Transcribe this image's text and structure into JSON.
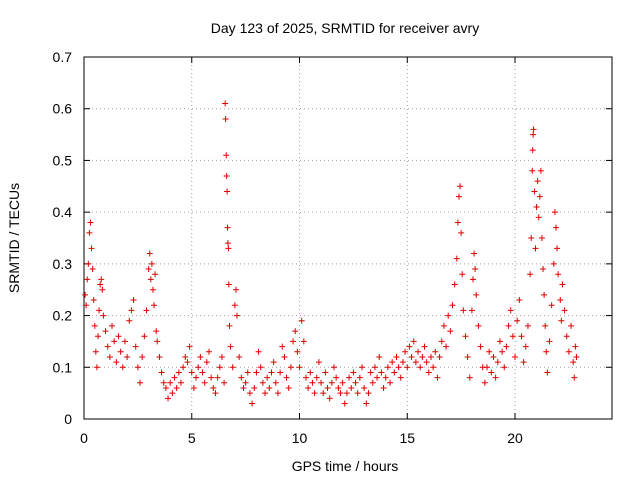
{
  "chart_data": {
    "type": "scatter",
    "title": "Day 123 of 2025, SRMTID for receiver avry",
    "xlabel": "GPS time / hours",
    "ylabel": "SRMTID / TECUs",
    "xlim": [
      0,
      24.5
    ],
    "ylim": [
      0,
      0.7
    ],
    "xticks": [
      0,
      5,
      10,
      15,
      20
    ],
    "xtick_labels": [
      "0",
      "5",
      "10",
      "15",
      "20"
    ],
    "yticks": [
      0,
      0.1,
      0.2,
      0.3,
      0.4,
      0.5,
      0.6,
      0.7
    ],
    "ytick_labels": [
      "0",
      "0.1",
      "0.2",
      "0.3",
      "0.4",
      "0.5",
      "0.6",
      "0.7"
    ],
    "grid": true,
    "marker": "plus",
    "color": "#e00000",
    "series": [
      {
        "name": "SRMTID",
        "points": [
          [
            0.05,
            0.24
          ],
          [
            0.1,
            0.22
          ],
          [
            0.15,
            0.27
          ],
          [
            0.2,
            0.3
          ],
          [
            0.25,
            0.36
          ],
          [
            0.3,
            0.38
          ],
          [
            0.35,
            0.33
          ],
          [
            0.4,
            0.29
          ],
          [
            0.45,
            0.23
          ],
          [
            0.5,
            0.18
          ],
          [
            0.55,
            0.13
          ],
          [
            0.6,
            0.1
          ],
          [
            0.65,
            0.16
          ],
          [
            0.7,
            0.21
          ],
          [
            0.75,
            0.26
          ],
          [
            0.8,
            0.27
          ],
          [
            0.85,
            0.25
          ],
          [
            0.9,
            0.2
          ],
          [
            1.0,
            0.17
          ],
          [
            1.1,
            0.14
          ],
          [
            1.2,
            0.12
          ],
          [
            1.3,
            0.18
          ],
          [
            1.4,
            0.15
          ],
          [
            1.5,
            0.11
          ],
          [
            1.6,
            0.16
          ],
          [
            1.7,
            0.13
          ],
          [
            1.8,
            0.1
          ],
          [
            1.9,
            0.15
          ],
          [
            2.0,
            0.12
          ],
          [
            2.1,
            0.19
          ],
          [
            2.2,
            0.21
          ],
          [
            2.3,
            0.23
          ],
          [
            2.4,
            0.14
          ],
          [
            2.5,
            0.1
          ],
          [
            2.6,
            0.07
          ],
          [
            2.7,
            0.12
          ],
          [
            2.8,
            0.16
          ],
          [
            2.9,
            0.21
          ],
          [
            3.0,
            0.29
          ],
          [
            3.05,
            0.32
          ],
          [
            3.1,
            0.27
          ],
          [
            3.15,
            0.3
          ],
          [
            3.2,
            0.25
          ],
          [
            3.25,
            0.22
          ],
          [
            3.3,
            0.28
          ],
          [
            3.35,
            0.17
          ],
          [
            3.4,
            0.15
          ],
          [
            3.5,
            0.12
          ],
          [
            3.6,
            0.09
          ],
          [
            3.7,
            0.07
          ],
          [
            3.8,
            0.06
          ],
          [
            3.9,
            0.04
          ],
          [
            4.0,
            0.07
          ],
          [
            4.1,
            0.05
          ],
          [
            4.2,
            0.08
          ],
          [
            4.3,
            0.06
          ],
          [
            4.4,
            0.09
          ],
          [
            4.5,
            0.07
          ],
          [
            4.6,
            0.1
          ],
          [
            4.7,
            0.12
          ],
          [
            4.8,
            0.11
          ],
          [
            4.9,
            0.14
          ],
          [
            5.0,
            0.09
          ],
          [
            5.1,
            0.06
          ],
          [
            5.2,
            0.08
          ],
          [
            5.3,
            0.1
          ],
          [
            5.4,
            0.12
          ],
          [
            5.5,
            0.09
          ],
          [
            5.6,
            0.07
          ],
          [
            5.7,
            0.11
          ],
          [
            5.8,
            0.13
          ],
          [
            5.9,
            0.08
          ],
          [
            6.0,
            0.06
          ],
          [
            6.1,
            0.05
          ],
          [
            6.2,
            0.08
          ],
          [
            6.3,
            0.1
          ],
          [
            6.4,
            0.12
          ],
          [
            6.5,
            0.07
          ],
          [
            6.55,
            0.61
          ],
          [
            6.57,
            0.58
          ],
          [
            6.6,
            0.51
          ],
          [
            6.62,
            0.47
          ],
          [
            6.64,
            0.44
          ],
          [
            6.66,
            0.37
          ],
          [
            6.68,
            0.34
          ],
          [
            6.7,
            0.33
          ],
          [
            6.72,
            0.26
          ],
          [
            6.75,
            0.18
          ],
          [
            6.8,
            0.14
          ],
          [
            6.9,
            0.1
          ],
          [
            7.0,
            0.22
          ],
          [
            7.05,
            0.25
          ],
          [
            7.1,
            0.2
          ],
          [
            7.2,
            0.12
          ],
          [
            7.3,
            0.08
          ],
          [
            7.4,
            0.06
          ],
          [
            7.5,
            0.07
          ],
          [
            7.6,
            0.09
          ],
          [
            7.7,
            0.05
          ],
          [
            7.8,
            0.03
          ],
          [
            7.9,
            0.06
          ],
          [
            8.0,
            0.09
          ],
          [
            8.1,
            0.13
          ],
          [
            8.2,
            0.1
          ],
          [
            8.3,
            0.07
          ],
          [
            8.4,
            0.05
          ],
          [
            8.5,
            0.08
          ],
          [
            8.6,
            0.06
          ],
          [
            8.7,
            0.09
          ],
          [
            8.8,
            0.11
          ],
          [
            8.9,
            0.07
          ],
          [
            9.0,
            0.05
          ],
          [
            9.1,
            0.09
          ],
          [
            9.2,
            0.14
          ],
          [
            9.3,
            0.12
          ],
          [
            9.4,
            0.08
          ],
          [
            9.5,
            0.06
          ],
          [
            9.6,
            0.1
          ],
          [
            9.7,
            0.15
          ],
          [
            9.8,
            0.17
          ],
          [
            9.9,
            0.13
          ],
          [
            10.0,
            0.1
          ],
          [
            10.1,
            0.19
          ],
          [
            10.2,
            0.15
          ],
          [
            10.3,
            0.08
          ],
          [
            10.4,
            0.06
          ],
          [
            10.5,
            0.09
          ],
          [
            10.6,
            0.07
          ],
          [
            10.7,
            0.05
          ],
          [
            10.8,
            0.08
          ],
          [
            10.9,
            0.11
          ],
          [
            11.0,
            0.07
          ],
          [
            11.1,
            0.05
          ],
          [
            11.2,
            0.09
          ],
          [
            11.3,
            0.06
          ],
          [
            11.4,
            0.04
          ],
          [
            11.5,
            0.07
          ],
          [
            11.6,
            0.1
          ],
          [
            11.7,
            0.08
          ],
          [
            11.8,
            0.06
          ],
          [
            11.9,
            0.05
          ],
          [
            12.0,
            0.07
          ],
          [
            12.1,
            0.03
          ],
          [
            12.2,
            0.05
          ],
          [
            12.3,
            0.08
          ],
          [
            12.4,
            0.06
          ],
          [
            12.5,
            0.09
          ],
          [
            12.6,
            0.07
          ],
          [
            12.7,
            0.05
          ],
          [
            12.8,
            0.08
          ],
          [
            12.9,
            0.1
          ],
          [
            13.0,
            0.06
          ],
          [
            13.1,
            0.03
          ],
          [
            13.2,
            0.05
          ],
          [
            13.3,
            0.09
          ],
          [
            13.4,
            0.07
          ],
          [
            13.5,
            0.1
          ],
          [
            13.6,
            0.08
          ],
          [
            13.7,
            0.12
          ],
          [
            13.8,
            0.09
          ],
          [
            13.9,
            0.06
          ],
          [
            14.0,
            0.08
          ],
          [
            14.1,
            0.1
          ],
          [
            14.2,
            0.07
          ],
          [
            14.3,
            0.11
          ],
          [
            14.4,
            0.09
          ],
          [
            14.5,
            0.12
          ],
          [
            14.6,
            0.1
          ],
          [
            14.7,
            0.08
          ],
          [
            14.8,
            0.11
          ],
          [
            14.9,
            0.13
          ],
          [
            15.0,
            0.1
          ],
          [
            15.1,
            0.14
          ],
          [
            15.2,
            0.12
          ],
          [
            15.3,
            0.15
          ],
          [
            15.4,
            0.11
          ],
          [
            15.5,
            0.13
          ],
          [
            15.6,
            0.1
          ],
          [
            15.7,
            0.12
          ],
          [
            15.8,
            0.14
          ],
          [
            15.9,
            0.11
          ],
          [
            16.0,
            0.09
          ],
          [
            16.1,
            0.12
          ],
          [
            16.2,
            0.1
          ],
          [
            16.3,
            0.13
          ],
          [
            16.4,
            0.08
          ],
          [
            16.5,
            0.12
          ],
          [
            16.6,
            0.15
          ],
          [
            16.7,
            0.18
          ],
          [
            16.8,
            0.14
          ],
          [
            16.9,
            0.2
          ],
          [
            17.0,
            0.17
          ],
          [
            17.1,
            0.22
          ],
          [
            17.2,
            0.26
          ],
          [
            17.3,
            0.31
          ],
          [
            17.35,
            0.38
          ],
          [
            17.4,
            0.43
          ],
          [
            17.45,
            0.45
          ],
          [
            17.5,
            0.36
          ],
          [
            17.55,
            0.28
          ],
          [
            17.6,
            0.21
          ],
          [
            17.7,
            0.16
          ],
          [
            17.8,
            0.12
          ],
          [
            17.9,
            0.08
          ],
          [
            18.0,
            0.21
          ],
          [
            18.05,
            0.27
          ],
          [
            18.1,
            0.32
          ],
          [
            18.15,
            0.29
          ],
          [
            18.2,
            0.24
          ],
          [
            18.3,
            0.18
          ],
          [
            18.4,
            0.14
          ],
          [
            18.5,
            0.1
          ],
          [
            18.6,
            0.07
          ],
          [
            18.7,
            0.1
          ],
          [
            18.8,
            0.13
          ],
          [
            18.9,
            0.09
          ],
          [
            19.0,
            0.12
          ],
          [
            19.1,
            0.08
          ],
          [
            19.2,
            0.11
          ],
          [
            19.3,
            0.15
          ],
          [
            19.4,
            0.13
          ],
          [
            19.5,
            0.1
          ],
          [
            19.6,
            0.14
          ],
          [
            19.7,
            0.18
          ],
          [
            19.8,
            0.21
          ],
          [
            19.9,
            0.16
          ],
          [
            20.0,
            0.12
          ],
          [
            20.1,
            0.19
          ],
          [
            20.2,
            0.23
          ],
          [
            20.3,
            0.16
          ],
          [
            20.4,
            0.11
          ],
          [
            20.5,
            0.14
          ],
          [
            20.6,
            0.18
          ],
          [
            20.7,
            0.28
          ],
          [
            20.75,
            0.35
          ],
          [
            20.8,
            0.48
          ],
          [
            20.82,
            0.52
          ],
          [
            20.84,
            0.55
          ],
          [
            20.86,
            0.56
          ],
          [
            20.9,
            0.44
          ],
          [
            20.95,
            0.33
          ],
          [
            21.0,
            0.41
          ],
          [
            21.05,
            0.46
          ],
          [
            21.1,
            0.39
          ],
          [
            21.15,
            0.43
          ],
          [
            21.2,
            0.48
          ],
          [
            21.25,
            0.35
          ],
          [
            21.3,
            0.29
          ],
          [
            21.35,
            0.24
          ],
          [
            21.4,
            0.18
          ],
          [
            21.45,
            0.13
          ],
          [
            21.5,
            0.09
          ],
          [
            21.6,
            0.15
          ],
          [
            21.7,
            0.22
          ],
          [
            21.8,
            0.3
          ],
          [
            21.85,
            0.4
          ],
          [
            21.9,
            0.37
          ],
          [
            21.95,
            0.33
          ],
          [
            22.0,
            0.28
          ],
          [
            22.1,
            0.23
          ],
          [
            22.15,
            0.19
          ],
          [
            22.2,
            0.26
          ],
          [
            22.3,
            0.21
          ],
          [
            22.4,
            0.16
          ],
          [
            22.5,
            0.13
          ],
          [
            22.6,
            0.18
          ],
          [
            22.7,
            0.11
          ],
          [
            22.75,
            0.08
          ],
          [
            22.8,
            0.14
          ],
          [
            22.85,
            0.12
          ]
        ]
      }
    ]
  }
}
